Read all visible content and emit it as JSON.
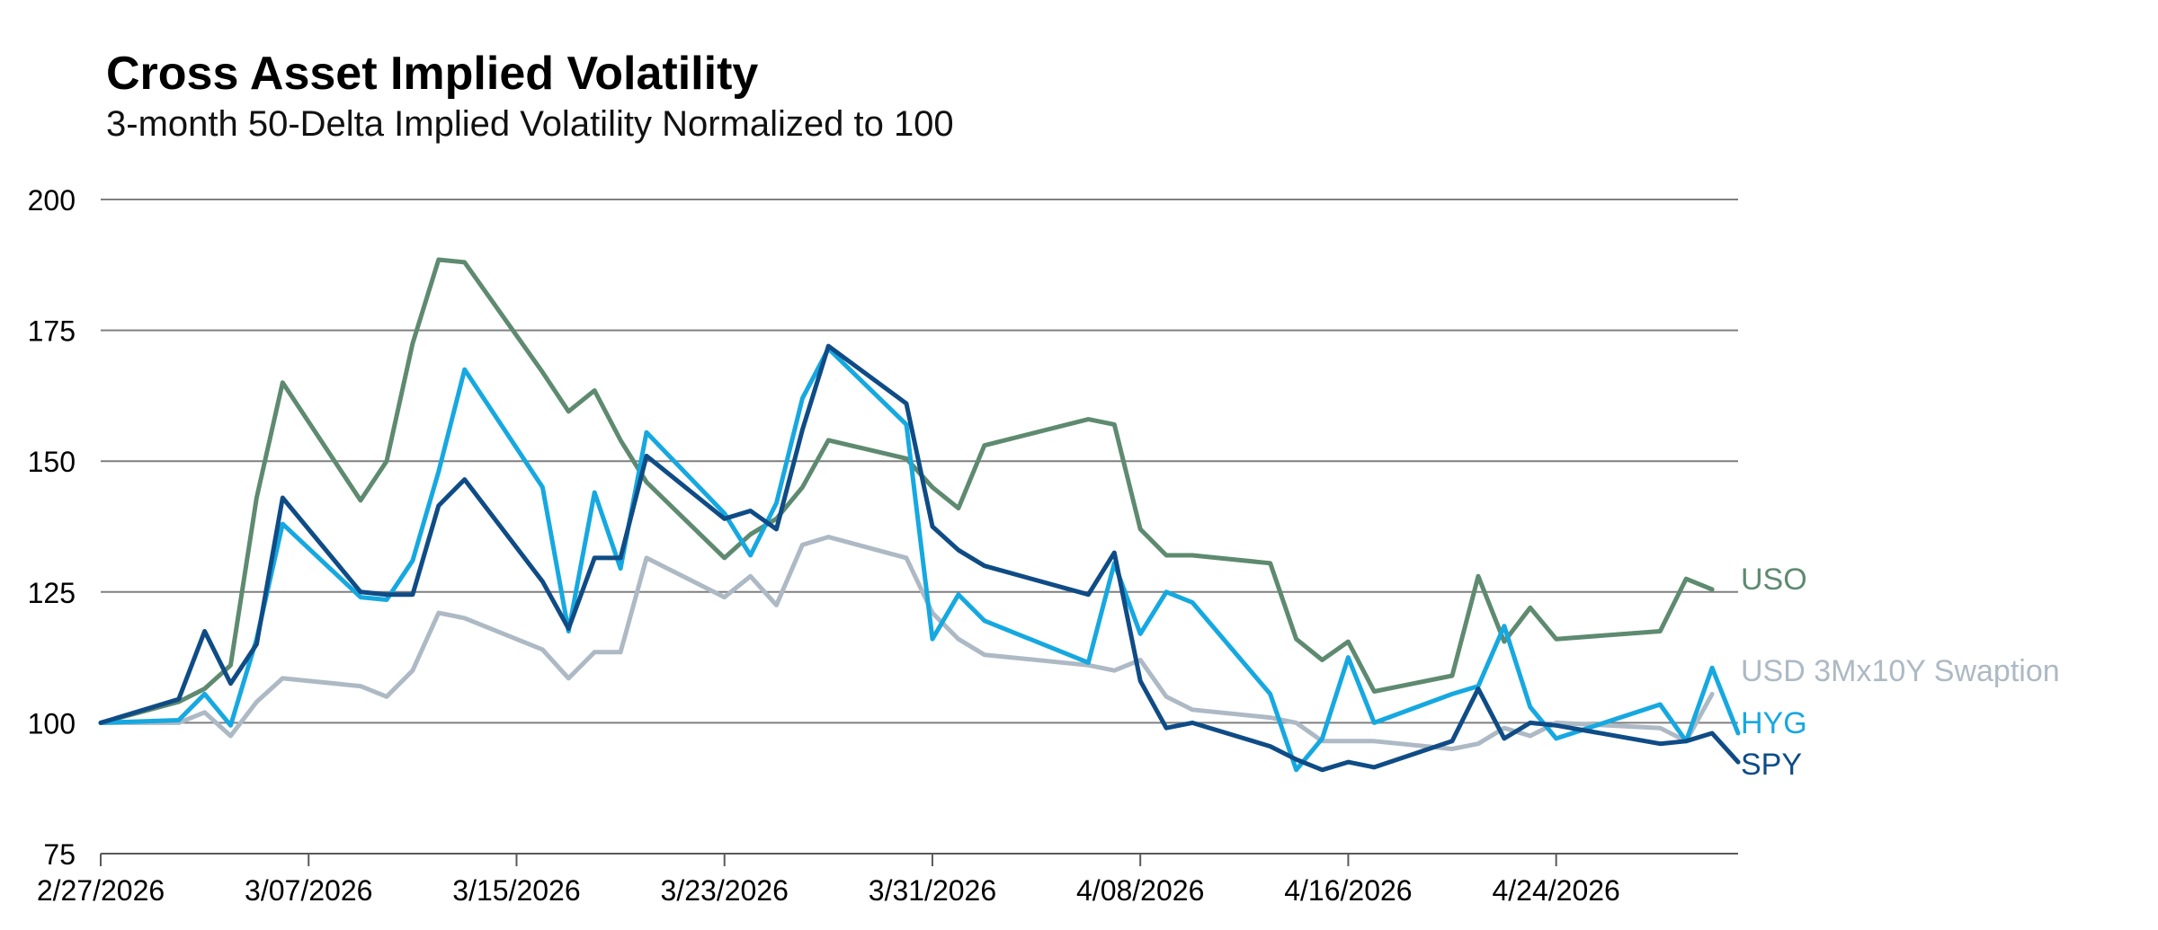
{
  "chart_data": {
    "type": "line",
    "title": "Cross Asset Implied Volatility",
    "subtitle": "3-month 50-Delta Implied Volatility Normalized to 100",
    "xlabel": "",
    "ylabel": "",
    "ylim": [
      75,
      200
    ],
    "yticks": [
      75,
      100,
      125,
      150,
      175,
      200
    ],
    "x_domain": [
      "2026-02-27",
      "2026-05-01"
    ],
    "xticks": [
      "2026-02-27",
      "2026-03-07",
      "2026-03-15",
      "2026-03-23",
      "2026-03-31",
      "2026-04-08",
      "2026-04-16",
      "2026-04-24"
    ],
    "xtick_labels": [
      "2/27/2026",
      "3/07/2026",
      "3/15/2026",
      "3/23/2026",
      "3/31/2026",
      "4/08/2026",
      "4/16/2026",
      "4/24/2026"
    ],
    "grid": "horizontal",
    "legend": "inline-right",
    "colors": {
      "gridline": "#7f7f7f",
      "axis": "#595959"
    },
    "series": [
      {
        "name": "USO",
        "color": "#5e8a70",
        "points": [
          [
            "2026-02-27",
            100
          ],
          [
            "2026-03-02",
            104
          ],
          [
            "2026-03-03",
            106.5
          ],
          [
            "2026-03-04",
            111
          ],
          [
            "2026-03-05",
            143
          ],
          [
            "2026-03-06",
            165
          ],
          [
            "2026-03-09",
            142.5
          ],
          [
            "2026-03-10",
            150
          ],
          [
            "2026-03-11",
            172.5
          ],
          [
            "2026-03-12",
            188.5
          ],
          [
            "2026-03-13",
            188
          ],
          [
            "2026-03-16",
            167
          ],
          [
            "2026-03-17",
            159.5
          ],
          [
            "2026-03-18",
            163.5
          ],
          [
            "2026-03-19",
            154
          ],
          [
            "2026-03-20",
            146
          ],
          [
            "2026-03-23",
            131.5
          ],
          [
            "2026-03-24",
            136
          ],
          [
            "2026-03-25",
            139
          ],
          [
            "2026-03-26",
            145
          ],
          [
            "2026-03-27",
            154
          ],
          [
            "2026-03-30",
            150.5
          ],
          [
            "2026-03-31",
            145
          ],
          [
            "2026-04-01",
            141
          ],
          [
            "2026-04-02",
            153
          ],
          [
            "2026-04-06",
            158
          ],
          [
            "2026-04-07",
            157
          ],
          [
            "2026-04-08",
            137
          ],
          [
            "2026-04-09",
            132
          ],
          [
            "2026-04-10",
            132
          ],
          [
            "2026-04-13",
            130.5
          ],
          [
            "2026-04-14",
            116
          ],
          [
            "2026-04-15",
            112
          ],
          [
            "2026-04-16",
            115.5
          ],
          [
            "2026-04-17",
            106
          ],
          [
            "2026-04-20",
            109
          ],
          [
            "2026-04-21",
            128
          ],
          [
            "2026-04-22",
            115.5
          ],
          [
            "2026-04-23",
            122
          ],
          [
            "2026-04-24",
            116
          ],
          [
            "2026-04-28",
            117.5
          ],
          [
            "2026-04-29",
            127.5
          ],
          [
            "2026-04-30",
            125.5
          ]
        ]
      },
      {
        "name": "USD 3Mx10Y Swaption",
        "color": "#adb9c4",
        "points": [
          [
            "2026-02-27",
            100
          ],
          [
            "2026-03-02",
            100
          ],
          [
            "2026-03-03",
            102
          ],
          [
            "2026-03-04",
            97.5
          ],
          [
            "2026-03-05",
            104
          ],
          [
            "2026-03-06",
            108.5
          ],
          [
            "2026-03-09",
            107
          ],
          [
            "2026-03-10",
            105
          ],
          [
            "2026-03-11",
            110
          ],
          [
            "2026-03-12",
            121
          ],
          [
            "2026-03-13",
            120
          ],
          [
            "2026-03-16",
            114
          ],
          [
            "2026-03-17",
            108.5
          ],
          [
            "2026-03-18",
            113.5
          ],
          [
            "2026-03-19",
            113.5
          ],
          [
            "2026-03-20",
            131.5
          ],
          [
            "2026-03-23",
            124
          ],
          [
            "2026-03-24",
            128
          ],
          [
            "2026-03-25",
            122.5
          ],
          [
            "2026-03-26",
            134
          ],
          [
            "2026-03-27",
            135.5
          ],
          [
            "2026-03-30",
            131.5
          ],
          [
            "2026-03-31",
            121
          ],
          [
            "2026-04-01",
            116
          ],
          [
            "2026-04-02",
            113
          ],
          [
            "2026-04-06",
            111
          ],
          [
            "2026-04-07",
            110
          ],
          [
            "2026-04-08",
            112
          ],
          [
            "2026-04-09",
            105
          ],
          [
            "2026-04-10",
            102.5
          ],
          [
            "2026-04-13",
            101
          ],
          [
            "2026-04-14",
            100
          ],
          [
            "2026-04-15",
            96.5
          ],
          [
            "2026-04-16",
            96.5
          ],
          [
            "2026-04-17",
            96.5
          ],
          [
            "2026-04-20",
            95
          ],
          [
            "2026-04-21",
            96
          ],
          [
            "2026-04-22",
            99
          ],
          [
            "2026-04-23",
            97.5
          ],
          [
            "2026-04-24",
            100
          ],
          [
            "2026-04-28",
            99
          ],
          [
            "2026-04-29",
            96.5
          ],
          [
            "2026-04-30",
            105.5
          ]
        ]
      },
      {
        "name": "HYG",
        "color": "#16a8e0",
        "points": [
          [
            "2026-02-27",
            100
          ],
          [
            "2026-03-02",
            100.5
          ],
          [
            "2026-03-03",
            105.5
          ],
          [
            "2026-03-04",
            99.5
          ],
          [
            "2026-03-05",
            116
          ],
          [
            "2026-03-06",
            138
          ],
          [
            "2026-03-09",
            124
          ],
          [
            "2026-03-10",
            123.5
          ],
          [
            "2026-03-11",
            131
          ],
          [
            "2026-03-12",
            148
          ],
          [
            "2026-03-13",
            167.5
          ],
          [
            "2026-03-16",
            145
          ],
          [
            "2026-03-17",
            117.5
          ],
          [
            "2026-03-18",
            144
          ],
          [
            "2026-03-19",
            129.5
          ],
          [
            "2026-03-20",
            155.5
          ],
          [
            "2026-03-23",
            140
          ],
          [
            "2026-03-24",
            132
          ],
          [
            "2026-03-25",
            142
          ],
          [
            "2026-03-26",
            162
          ],
          [
            "2026-03-27",
            171.5
          ],
          [
            "2026-03-30",
            157
          ],
          [
            "2026-03-31",
            116
          ],
          [
            "2026-04-01",
            124.5
          ],
          [
            "2026-04-02",
            119.5
          ],
          [
            "2026-04-06",
            111.5
          ],
          [
            "2026-04-07",
            130.5
          ],
          [
            "2026-04-08",
            117
          ],
          [
            "2026-04-09",
            125
          ],
          [
            "2026-04-10",
            123
          ],
          [
            "2026-04-13",
            105.5
          ],
          [
            "2026-04-14",
            91
          ],
          [
            "2026-04-15",
            97
          ],
          [
            "2026-04-16",
            112.5
          ],
          [
            "2026-04-17",
            100
          ],
          [
            "2026-04-20",
            105.5
          ],
          [
            "2026-04-21",
            107
          ],
          [
            "2026-04-22",
            118.5
          ],
          [
            "2026-04-23",
            103
          ],
          [
            "2026-04-24",
            97
          ],
          [
            "2026-04-28",
            103.5
          ],
          [
            "2026-04-29",
            96.5
          ],
          [
            "2026-04-30",
            110.5
          ],
          [
            "2026-05-01",
            98
          ]
        ]
      },
      {
        "name": "SPY",
        "color": "#0f4c86",
        "points": [
          [
            "2026-02-27",
            100
          ],
          [
            "2026-03-02",
            104.5
          ],
          [
            "2026-03-03",
            117.5
          ],
          [
            "2026-03-04",
            107.5
          ],
          [
            "2026-03-05",
            115
          ],
          [
            "2026-03-06",
            143
          ],
          [
            "2026-03-09",
            125
          ],
          [
            "2026-03-10",
            124.5
          ],
          [
            "2026-03-11",
            124.5
          ],
          [
            "2026-03-12",
            141.5
          ],
          [
            "2026-03-13",
            146.5
          ],
          [
            "2026-03-16",
            127
          ],
          [
            "2026-03-17",
            118
          ],
          [
            "2026-03-18",
            131.5
          ],
          [
            "2026-03-19",
            131.5
          ],
          [
            "2026-03-20",
            151
          ],
          [
            "2026-03-23",
            139
          ],
          [
            "2026-03-24",
            140.5
          ],
          [
            "2026-03-25",
            137
          ],
          [
            "2026-03-26",
            156
          ],
          [
            "2026-03-27",
            172
          ],
          [
            "2026-03-30",
            161
          ],
          [
            "2026-03-31",
            137.5
          ],
          [
            "2026-04-01",
            133
          ],
          [
            "2026-04-02",
            130
          ],
          [
            "2026-04-06",
            124.5
          ],
          [
            "2026-04-07",
            132.5
          ],
          [
            "2026-04-08",
            108
          ],
          [
            "2026-04-09",
            99
          ],
          [
            "2026-04-10",
            100
          ],
          [
            "2026-04-13",
            95.5
          ],
          [
            "2026-04-14",
            93
          ],
          [
            "2026-04-15",
            91
          ],
          [
            "2026-04-16",
            92.5
          ],
          [
            "2026-04-17",
            91.5
          ],
          [
            "2026-04-20",
            96.5
          ],
          [
            "2026-04-21",
            106.5
          ],
          [
            "2026-04-22",
            97
          ],
          [
            "2026-04-23",
            100
          ],
          [
            "2026-04-24",
            99.5
          ],
          [
            "2026-04-28",
            96
          ],
          [
            "2026-04-29",
            96.5
          ],
          [
            "2026-04-30",
            98
          ],
          [
            "2026-05-01",
            92.5
          ]
        ]
      }
    ]
  }
}
